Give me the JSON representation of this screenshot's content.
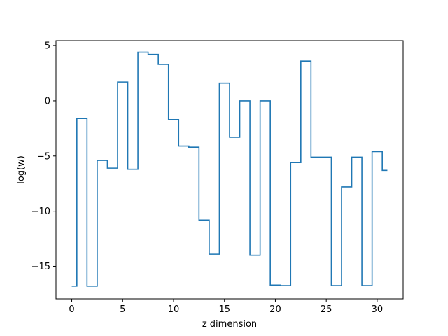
{
  "chart_data": {
    "type": "line",
    "drawstyle": "steps-mid",
    "title": "",
    "xlabel": "z dimension",
    "ylabel": "log(w)",
    "xlim": [
      -1.55,
      32.55
    ],
    "ylim": [
      -17.95,
      5.45
    ],
    "xticks": [
      0,
      5,
      10,
      15,
      20,
      25,
      30
    ],
    "yticks": [
      -15,
      -10,
      -5,
      0,
      5
    ],
    "xtick_labels": [
      "0",
      "5",
      "10",
      "15",
      "20",
      "25",
      "30"
    ],
    "ytick_labels": [
      "−15",
      "−10",
      "−5",
      "0",
      "5"
    ],
    "grid": false,
    "legend": "none",
    "line_color": "#1f77b4",
    "series": [
      {
        "x": [
          0,
          1,
          2,
          3,
          4,
          5,
          6,
          7,
          8,
          9,
          10,
          11,
          12,
          13,
          14,
          15,
          16,
          17,
          18,
          19,
          20,
          21,
          22,
          23,
          24,
          25,
          26,
          27,
          28,
          29,
          30,
          31
        ],
        "values": [
          -16.8,
          -1.6,
          -16.8,
          -5.4,
          -6.1,
          1.7,
          -6.2,
          4.4,
          4.2,
          3.3,
          -1.7,
          -4.1,
          -4.2,
          -10.8,
          -13.9,
          1.6,
          -3.3,
          0.0,
          -14.0,
          0.0,
          -16.7,
          -16.75,
          -5.6,
          3.6,
          -5.1,
          -5.1,
          -16.75,
          -7.8,
          -5.1,
          -16.75,
          -4.6,
          -6.3
        ]
      }
    ]
  }
}
